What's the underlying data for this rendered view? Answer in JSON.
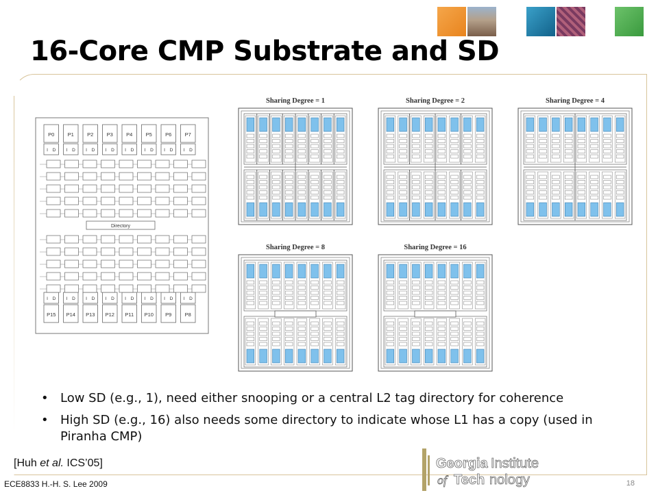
{
  "slide": {
    "title": "16-Core CMP Substrate and SD",
    "bullets": [
      "Low SD (e.g., 1), need either snooping or a central L2 tag directory for coherence",
      "High SD (e.g., 16) also needs some directory to indicate whose L1 has a copy (used in Piranha CMP)"
    ],
    "citation_prefix": "[Huh ",
    "citation_italic": "et al.",
    "citation_suffix": " ICS’05]",
    "footer": "ECE8833 H.-H. S. Lee 2009",
    "page_number": "18"
  },
  "substrate": {
    "top_processors": [
      "P0",
      "P1",
      "P2",
      "P3",
      "P4",
      "P5",
      "P6",
      "P7"
    ],
    "bottom_processors": [
      "P15",
      "P14",
      "P13",
      "P12",
      "P11",
      "P10",
      "P9",
      "P8"
    ],
    "cache_labels": [
      "I",
      "D"
    ],
    "directory_label": "Directory"
  },
  "sharing_panels": [
    {
      "label": "Sharing Degree = 1"
    },
    {
      "label": "Sharing Degree = 2"
    },
    {
      "label": "Sharing Degree = 4"
    },
    {
      "label": "Sharing Degree = 8"
    },
    {
      "label": "Sharing Degree = 16"
    }
  ],
  "logo": {
    "line1_a": "Georgia",
    "line1_b": "Institute",
    "line2_a": "of ",
    "line2_b": "Tech",
    "line2_c": "nology"
  },
  "colors": {
    "title": "#000000",
    "core_fill": "#7fc1ec",
    "frame": "#d8c49a",
    "logo_gold": "#b3a369"
  }
}
